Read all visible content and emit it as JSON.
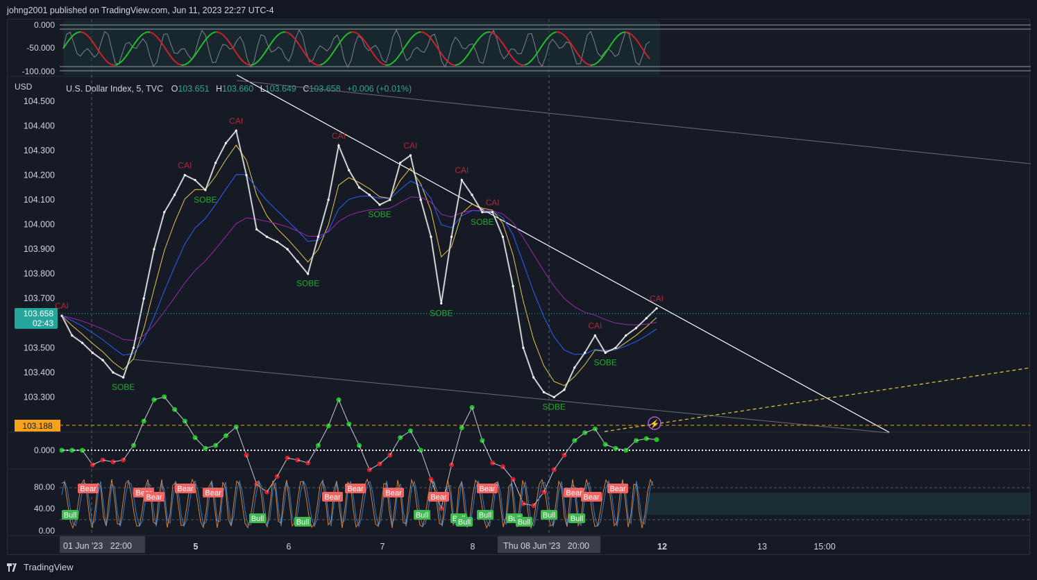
{
  "publisher_line": "johng2001 published on TradingView.com, Jun 11, 2023 22:27 UTC-4",
  "footer_brand": "TradingView",
  "colors": {
    "background": "#161a25",
    "price_line": "#ffffff",
    "bull_label": "#22ab2a",
    "bear_label": "#b22833",
    "ema_blue": "#2962ff",
    "ema_purple": "#9c27b0",
    "last_price_badge": "#26a69a",
    "support_badge": "#f7a21b",
    "stoch_k": "#d9843b",
    "stoch_d": "#2f7fd1"
  },
  "main_pane": {
    "currency": "USD",
    "symbol": "U.S. Dollar Index, 5, TVC",
    "ohlc": {
      "o_label": "O",
      "o": "103.651",
      "h_label": "H",
      "h": "103.660",
      "l_label": "L",
      "l": "103.649",
      "c_label": "C",
      "c": "103.658",
      "change": "+0.006 (+0.01%)"
    },
    "last_price": "103.658",
    "last_price_countdown": "02:43",
    "support_level": "103.188",
    "signal_top": "CAI",
    "signal_bottom": "SOBE"
  },
  "top_pane": {
    "ticks": [
      "0.000",
      "-50.000",
      "-100.000"
    ]
  },
  "momentum_pane": {
    "ticks": [
      "0.000"
    ]
  },
  "stoch_pane": {
    "ticks": [
      "80.00",
      "40.00",
      "0.00"
    ],
    "bear_label": "Bear",
    "bull_label": "Bull"
  },
  "time_axis": {
    "labels": [
      "5",
      "6",
      "7",
      "8",
      "12",
      "13",
      "15:00"
    ],
    "crosshair_left": "01 Jun '23   22:00",
    "crosshair_right": "Thu 08 Jun '23   20:00"
  },
  "chart_data": [
    {
      "type": "line",
      "title": "U.S. Dollar Index, 5, TVC",
      "ylabel": "USD",
      "ylim": [
        103.2,
        104.55
      ],
      "y_ticks": [
        "104.500",
        "104.400",
        "104.300",
        "104.200",
        "104.100",
        "104.000",
        "103.900",
        "103.800",
        "103.700",
        "103.600",
        "103.500",
        "103.400",
        "103.300"
      ],
      "x_labels": [
        "01 Jun '23",
        "5",
        "6",
        "7",
        "8",
        "12",
        "13"
      ],
      "series": [
        {
          "name": "close",
          "values": [
            103.63,
            103.55,
            103.52,
            103.48,
            103.45,
            103.4,
            103.38,
            103.5,
            103.7,
            103.9,
            104.05,
            104.12,
            104.2,
            104.18,
            104.14,
            104.25,
            104.33,
            104.38,
            104.2,
            103.98,
            103.95,
            103.93,
            103.9,
            103.85,
            103.8,
            103.95,
            104.1,
            104.32,
            104.22,
            104.15,
            104.12,
            104.08,
            104.1,
            104.25,
            104.28,
            104.1,
            103.95,
            103.68,
            103.95,
            104.18,
            104.12,
            104.05,
            104.05,
            103.95,
            103.75,
            103.5,
            103.38,
            103.32,
            103.3,
            103.33,
            103.42,
            103.48,
            103.55,
            103.48,
            103.5,
            103.55,
            103.58,
            103.62,
            103.66
          ]
        }
      ]
    },
    {
      "type": "line",
      "ylim": [
        -100,
        0
      ],
      "y_ticks": [
        "0.000",
        "-50.000",
        "-100.000"
      ]
    },
    {
      "type": "line",
      "y_ticks": [
        "0.000"
      ]
    },
    {
      "type": "line",
      "ylim": [
        0,
        100
      ],
      "y_ticks": [
        "80.00",
        "40.00",
        "0.00"
      ]
    }
  ]
}
